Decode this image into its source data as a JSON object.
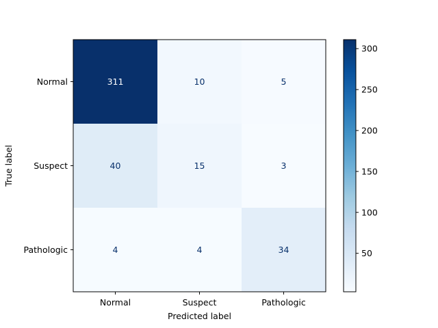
{
  "chart_data": {
    "type": "heatmap",
    "title": "",
    "xlabel": "Predicted label",
    "ylabel": "True label",
    "x_categories": [
      "Normal",
      "Suspect",
      "Pathologic"
    ],
    "y_categories": [
      "Normal",
      "Suspect",
      "Pathologic"
    ],
    "matrix": [
      [
        311,
        10,
        5
      ],
      [
        40,
        15,
        3
      ],
      [
        4,
        4,
        34
      ]
    ],
    "colormap": "Blues",
    "colorbar": {
      "range": [
        3,
        311
      ],
      "ticks": [
        50,
        100,
        150,
        200,
        250,
        300
      ]
    },
    "text_colors": {
      "dark": "#08306b",
      "light": "#ffffff"
    }
  }
}
